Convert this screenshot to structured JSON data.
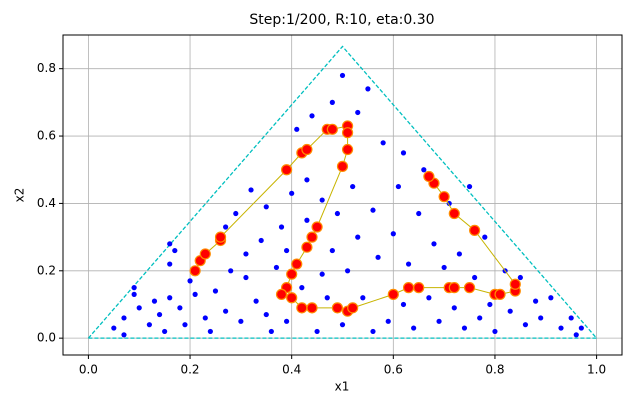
{
  "chart_data": {
    "type": "scatter",
    "title": "Step:1/200, R:10, eta:0.30",
    "x_label": "x1",
    "y_label": "x2",
    "xlim": [
      -0.05,
      1.05
    ],
    "ylim": [
      -0.05,
      0.9
    ],
    "xticks": [
      {
        "value": 0,
        "label": "0.0"
      },
      {
        "value": 0.2,
        "label": "0.2"
      },
      {
        "value": 0.4,
        "label": "0.4"
      },
      {
        "value": 0.6,
        "label": "0.6"
      },
      {
        "value": 0.8,
        "label": "0.8"
      },
      {
        "value": 1,
        "label": "1.0"
      }
    ],
    "yticks": [
      {
        "value": 0,
        "label": "0.0"
      },
      {
        "value": 0.2,
        "label": "0.2"
      },
      {
        "value": 0.4,
        "label": "0.4"
      },
      {
        "value": 0.6,
        "label": "0.6"
      },
      {
        "value": 0.8,
        "label": "0.8"
      }
    ],
    "grid": true,
    "series": [
      {
        "kind": "line",
        "dashed": true,
        "color": "#00bfbf",
        "x": [
          0,
          1,
          0.5,
          0
        ],
        "y": [
          0,
          0,
          0.866,
          0
        ]
      },
      {
        "kind": "points",
        "color": "#0000ff",
        "x": [
          0.07,
          0.05,
          0.07,
          0.09,
          0.09,
          0.1,
          0.12,
          0.13,
          0.14,
          0.15,
          0.16,
          0.16,
          0.17,
          0.16,
          0.18,
          0.19,
          0.2,
          0.21,
          0.23,
          0.24,
          0.25,
          0.27,
          0.27,
          0.28,
          0.29,
          0.3,
          0.31,
          0.31,
          0.32,
          0.33,
          0.34,
          0.35,
          0.35,
          0.36,
          0.37,
          0.38,
          0.39,
          0.39,
          0.4,
          0.41,
          0.42,
          0.43,
          0.43,
          0.44,
          0.45,
          0.46,
          0.46,
          0.47,
          0.48,
          0.48,
          0.49,
          0.5,
          0.5,
          0.51,
          0.52,
          0.53,
          0.53,
          0.54,
          0.55,
          0.56,
          0.56,
          0.57,
          0.58,
          0.59,
          0.6,
          0.61,
          0.62,
          0.62,
          0.63,
          0.64,
          0.65,
          0.66,
          0.67,
          0.68,
          0.69,
          0.7,
          0.71,
          0.72,
          0.73,
          0.74,
          0.75,
          0.76,
          0.77,
          0.78,
          0.79,
          0.8,
          0.82,
          0.83,
          0.85,
          0.86,
          0.88,
          0.89,
          0.91,
          0.93,
          0.95,
          0.96,
          0.97
        ],
        "y": [
          0.01,
          0.03,
          0.06,
          0.13,
          0.15,
          0.09,
          0.04,
          0.11,
          0.07,
          0.02,
          0.12,
          0.22,
          0.26,
          0.28,
          0.09,
          0.04,
          0.17,
          0.13,
          0.06,
          0.02,
          0.14,
          0.08,
          0.33,
          0.2,
          0.37,
          0.05,
          0.18,
          0.25,
          0.44,
          0.11,
          0.29,
          0.07,
          0.39,
          0.02,
          0.21,
          0.33,
          0.05,
          0.26,
          0.43,
          0.62,
          0.15,
          0.35,
          0.47,
          0.66,
          0.02,
          0.19,
          0.41,
          0.12,
          0.26,
          0.7,
          0.37,
          0.04,
          0.78,
          0.2,
          0.45,
          0.3,
          0.67,
          0.12,
          0.74,
          0.02,
          0.38,
          0.24,
          0.58,
          0.05,
          0.31,
          0.45,
          0.1,
          0.55,
          0.22,
          0.03,
          0.37,
          0.5,
          0.12,
          0.28,
          0.05,
          0.21,
          0.4,
          0.09,
          0.25,
          0.03,
          0.45,
          0.18,
          0.06,
          0.3,
          0.1,
          0.02,
          0.2,
          0.08,
          0.18,
          0.04,
          0.11,
          0.06,
          0.12,
          0.03,
          0.06,
          0.01,
          0.03
        ]
      },
      {
        "kind": "line",
        "dashed": false,
        "color": "#c8b400",
        "x": [
          0.21,
          0.22,
          0.23,
          0.26,
          0.26,
          0.39,
          0.42,
          0.43,
          0.47,
          0.48,
          0.51,
          0.51,
          0.51,
          0.5,
          0.45,
          0.44,
          0.43,
          0.41,
          0.4,
          0.39,
          0.38,
          0.4,
          0.42,
          0.44,
          0.49,
          0.51,
          0.52,
          0.6,
          0.63,
          0.65,
          0.71,
          0.72,
          0.75,
          0.8,
          0.81,
          0.84,
          0.84,
          0.76,
          0.72,
          0.7,
          0.68,
          0.67
        ],
        "y": [
          0.2,
          0.23,
          0.25,
          0.29,
          0.3,
          0.5,
          0.55,
          0.56,
          0.62,
          0.62,
          0.63,
          0.61,
          0.56,
          0.51,
          0.33,
          0.3,
          0.27,
          0.22,
          0.19,
          0.15,
          0.13,
          0.12,
          0.09,
          0.09,
          0.09,
          0.08,
          0.09,
          0.13,
          0.15,
          0.15,
          0.15,
          0.15,
          0.15,
          0.13,
          0.13,
          0.14,
          0.16,
          0.32,
          0.37,
          0.42,
          0.46,
          0.48
        ]
      },
      {
        "kind": "points",
        "color": "#ff0000",
        "edge": "#ff8c00",
        "x": [
          0.21,
          0.22,
          0.23,
          0.26,
          0.26,
          0.39,
          0.42,
          0.43,
          0.47,
          0.48,
          0.51,
          0.51,
          0.51,
          0.5,
          0.45,
          0.44,
          0.43,
          0.41,
          0.4,
          0.39,
          0.38,
          0.4,
          0.42,
          0.44,
          0.49,
          0.51,
          0.52,
          0.6,
          0.63,
          0.65,
          0.71,
          0.72,
          0.75,
          0.8,
          0.81,
          0.84,
          0.84,
          0.76,
          0.72,
          0.7,
          0.68,
          0.67
        ],
        "y": [
          0.2,
          0.23,
          0.25,
          0.29,
          0.3,
          0.5,
          0.55,
          0.56,
          0.62,
          0.62,
          0.63,
          0.61,
          0.56,
          0.51,
          0.33,
          0.3,
          0.27,
          0.22,
          0.19,
          0.15,
          0.13,
          0.12,
          0.09,
          0.09,
          0.09,
          0.08,
          0.09,
          0.13,
          0.15,
          0.15,
          0.15,
          0.15,
          0.15,
          0.13,
          0.13,
          0.14,
          0.16,
          0.32,
          0.37,
          0.42,
          0.46,
          0.48
        ]
      }
    ]
  }
}
